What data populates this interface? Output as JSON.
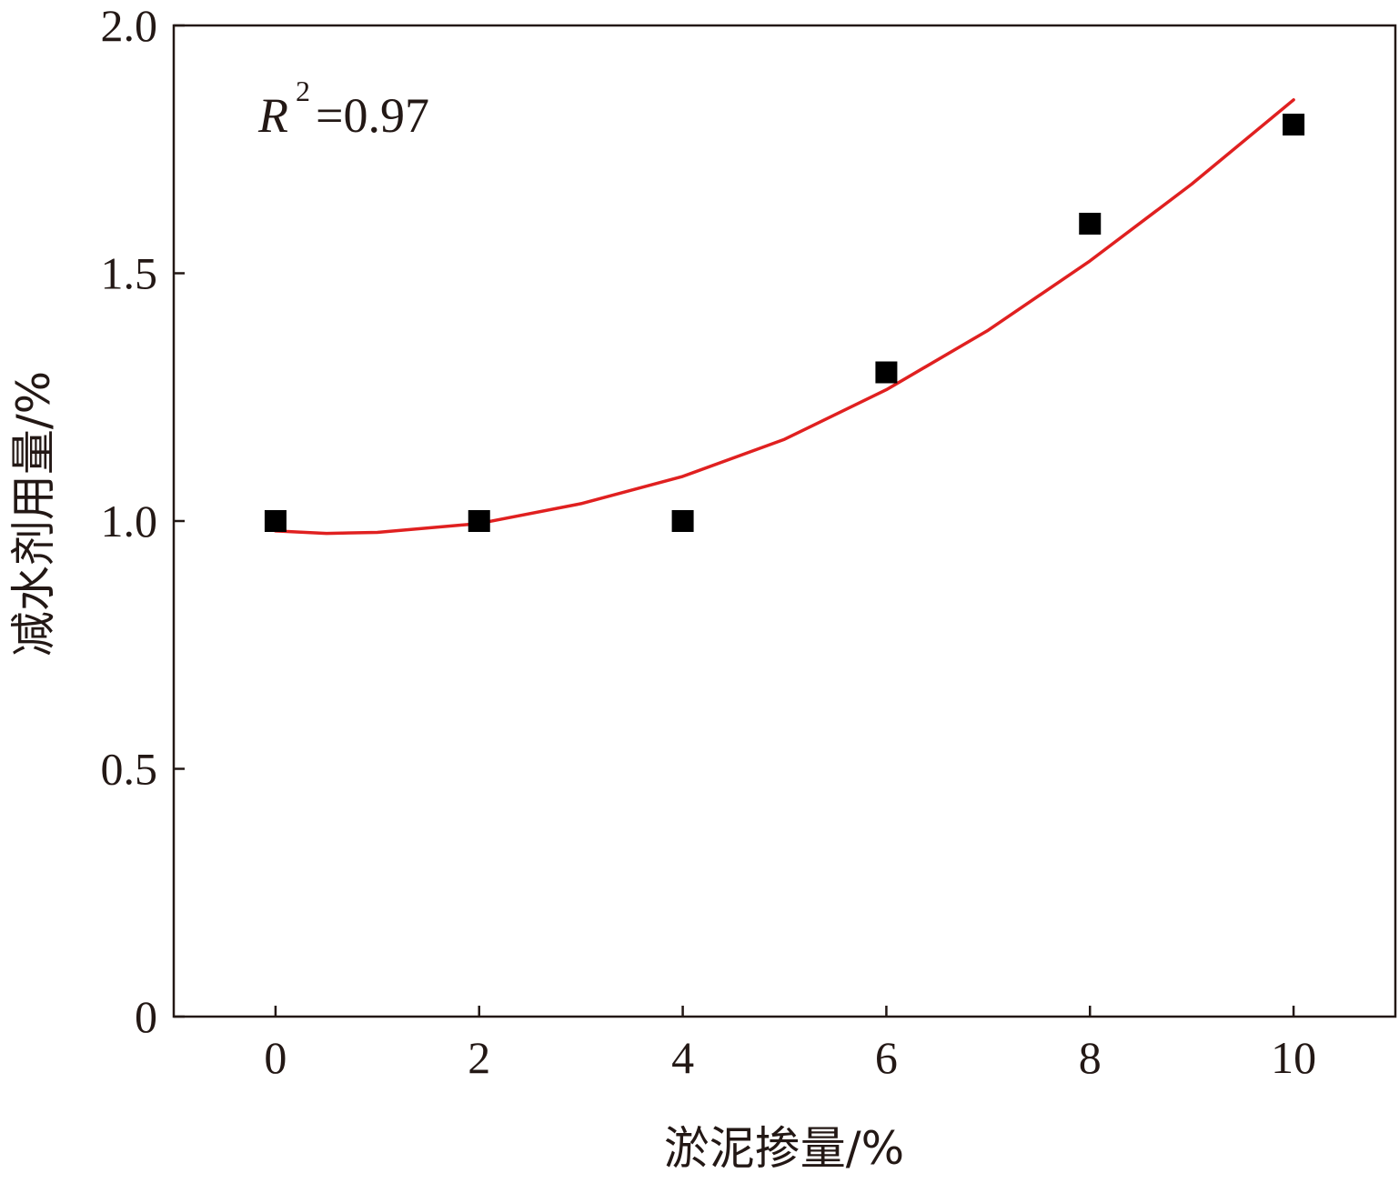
{
  "chart_data": {
    "type": "scatter",
    "xlabel": "淤泥掺量/%",
    "ylabel": "减水剂用量/%",
    "xlim": [
      -1,
      11
    ],
    "ylim": [
      0,
      2.0
    ],
    "x_ticks": [
      "0",
      "2",
      "4",
      "6",
      "8",
      "10"
    ],
    "x_tick_values": [
      0,
      2,
      4,
      6,
      8,
      10
    ],
    "y_ticks": [
      "0",
      "0.5",
      "1.0",
      "1.5",
      "2.0"
    ],
    "y_tick_values": [
      0,
      0.5,
      1.0,
      1.5,
      2.0
    ],
    "series": [
      {
        "type": "scatter",
        "marker": "square",
        "color": "#000000",
        "x": [
          0,
          2,
          4,
          6,
          8,
          10
        ],
        "y": [
          1.0,
          1.0,
          1.0,
          1.3,
          1.6,
          1.8
        ]
      },
      {
        "type": "line",
        "color": "#e02020",
        "x": [
          0,
          0.5,
          1,
          2,
          3,
          4,
          5,
          6,
          7,
          8,
          9,
          10
        ],
        "y": [
          0.98,
          0.975,
          0.977,
          0.995,
          1.035,
          1.09,
          1.165,
          1.265,
          1.385,
          1.525,
          1.68,
          1.85
        ]
      }
    ],
    "annotation": {
      "r_symbol": "R",
      "exponent": "2",
      "value": "=0.97"
    },
    "grid": false,
    "legend": "none"
  }
}
